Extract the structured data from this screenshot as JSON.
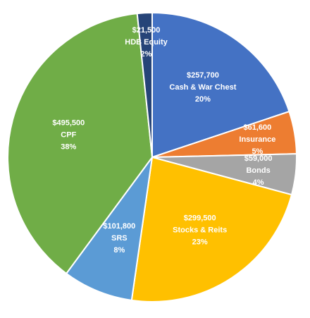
{
  "chart_data": {
    "type": "pie",
    "title": "",
    "start_angle_deg": 0,
    "direction": "clockwise",
    "slices": [
      {
        "value": 257700,
        "value_label": "$257,700",
        "name": "Cash & War Chest",
        "pct_label": "20%",
        "color": "#4472C4"
      },
      {
        "value": 61600,
        "value_label": "$61,600",
        "name": "Insurance",
        "pct_label": "5%",
        "color": "#ED7D31"
      },
      {
        "value": 59000,
        "value_label": "$59,000",
        "name": "Bonds",
        "pct_label": "4%",
        "color": "#A5A5A5"
      },
      {
        "value": 299500,
        "value_label": "$299,500",
        "name": "Stocks & Reits",
        "pct_label": "23%",
        "color": "#FFC000"
      },
      {
        "value": 101800,
        "value_label": "$101,800",
        "name": "SRS",
        "pct_label": "8%",
        "color": "#5B9BD5"
      },
      {
        "value": 495500,
        "value_label": "$495,500",
        "name": "CPF",
        "pct_label": "38%",
        "color": "#70AD47"
      },
      {
        "value": 21500,
        "value_label": "$21,500",
        "name": "HDB Equity",
        "pct_label": "2%",
        "color": "#264478"
      }
    ]
  }
}
